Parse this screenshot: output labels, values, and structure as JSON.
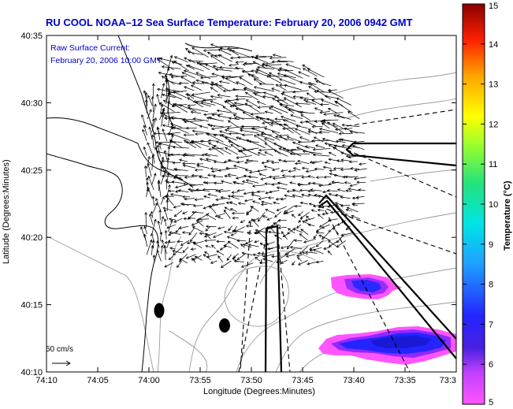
{
  "title": "RU COOL  NOAA–12  Sea Surface Temperature:  February 20, 2006 0942 GMT",
  "annotation": {
    "line1": "Raw Surface Current:",
    "line2": "February 20, 2006 10:00 GMT"
  },
  "x_axis": {
    "label": "Longitude (Degrees:Minutes)",
    "ticks": [
      "74:10",
      "74:05",
      "74:00",
      "73:55",
      "73:50",
      "73:45",
      "73:40",
      "73:35",
      "73:3"
    ]
  },
  "y_axis": {
    "label": "Latitude (Degrees:Minutes)",
    "ticks": [
      "40:35",
      "40:30",
      "40:25",
      "40:20",
      "40:15",
      "40:10"
    ]
  },
  "colorbar": {
    "label": "Temperature (°C)",
    "ticks": [
      "15",
      "14",
      "13",
      "12",
      "11",
      "10",
      "9",
      "8",
      "7",
      "6",
      "5"
    ],
    "min": 5,
    "max": 15,
    "colors": [
      "#ff55ff",
      "#9d2cff",
      "#2020ff",
      "#1f8fff",
      "#00e5e5",
      "#22e27f",
      "#7dff2a",
      "#ffff00",
      "#ffa500",
      "#ff2a00",
      "#990000"
    ]
  },
  "scale": {
    "label": "50 cm/s"
  },
  "chart_data": {
    "type": "map",
    "xlim": [
      "74:10",
      "73:30"
    ],
    "ylim": [
      "40:10",
      "40:35"
    ],
    "sst_patches_temp_c": [
      6.0,
      6.3
    ],
    "current_vectors": "dense field of raw surface current arrows over the Lower Bay / Raritan Bay area"
  }
}
